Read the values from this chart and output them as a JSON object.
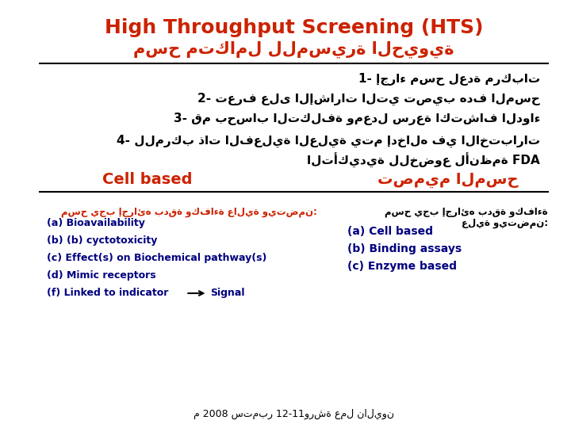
{
  "bg_color": "#ffffff",
  "title_en": "High Throughput Screening (HTS)",
  "title_ar": "مسح متكامل للمسيرة الحيوية",
  "title_color": "#cc2200",
  "points": [
    "1- إجراء مسح لعدة مركبات",
    "2- تعرف على الإشارات التي تصيب هدف المسح",
    "3- قم بحساب التكلفة ومعدل سرعة اكتشاف الدواء",
    "4- للمركب ذات الفعلية العلية يتم إدخاله في الاختبارات"
  ],
  "fda_line": "التأكيدية للخضوع لأنظمة FDA",
  "section_left": "Cell based",
  "section_right": "تصميم المسح",
  "left_header": "مسح يجب إجرائه بدقة وكفاءة عالية ويتضمن:",
  "left_items": [
    "(a) Bioavailability",
    "(b) (b) cyctotoxicity",
    "(c) Effect(s) on Biochemical pathway(s)",
    "(d) Mimic receptors",
    "(f) Linked to indicator → Signal"
  ],
  "right_header": "مسح يجب إجرائه بدقة وكفاءة\nعلية ويتضمن:",
  "right_items": [
    "(a) Cell based",
    "(b) Binding assays",
    "(c) Enzyme based"
  ],
  "footer": "م 2008 ستمبر 12-11ورشة عمل ناليون",
  "orange": "#cc2200",
  "black": "#000000",
  "dark_blue": "#000080"
}
